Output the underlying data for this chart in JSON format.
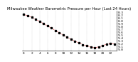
{
  "title": "Milwaukee Weather Barometric Pressure per Hour (Last 24 Hours)",
  "hours": [
    0,
    1,
    2,
    3,
    4,
    5,
    6,
    7,
    8,
    9,
    10,
    11,
    12,
    13,
    14,
    15,
    16,
    17,
    18,
    19,
    20,
    21,
    22,
    23
  ],
  "pressure": [
    30.22,
    30.18,
    30.12,
    30.05,
    29.98,
    29.9,
    29.82,
    29.74,
    29.66,
    29.58,
    29.5,
    29.42,
    29.35,
    29.28,
    29.22,
    29.16,
    29.12,
    29.08,
    29.05,
    29.08,
    29.12,
    29.18,
    29.2,
    29.18
  ],
  "ylim": [
    28.95,
    30.35
  ],
  "yticks": [
    29.0,
    29.1,
    29.2,
    29.3,
    29.4,
    29.5,
    29.6,
    29.7,
    29.8,
    29.9,
    30.0,
    30.1,
    30.2,
    30.3
  ],
  "ytick_labels": [
    "9.0",
    "9.1",
    "9.2",
    "9.3",
    "9.4",
    "9.5",
    "9.6",
    "9.7",
    "9.8",
    "9.9",
    "0.0",
    "0.1",
    "0.2",
    "0.3"
  ],
  "xlim": [
    -0.5,
    23.5
  ],
  "xtick_positions": [
    0,
    2,
    4,
    6,
    8,
    10,
    12,
    14,
    16,
    18,
    20,
    22
  ],
  "xtick_labels": [
    "0",
    "2",
    "4",
    "6",
    "8",
    "10",
    "12",
    "14",
    "16",
    "18",
    "20",
    "22"
  ],
  "line_color": "#cc0000",
  "marker_color": "#000000",
  "bg_color": "#ffffff",
  "grid_color": "#999999",
  "title_color": "#000000",
  "title_fontsize": 3.8,
  "tick_fontsize": 3.2,
  "line_width": 0.5,
  "marker_size": 1.4
}
